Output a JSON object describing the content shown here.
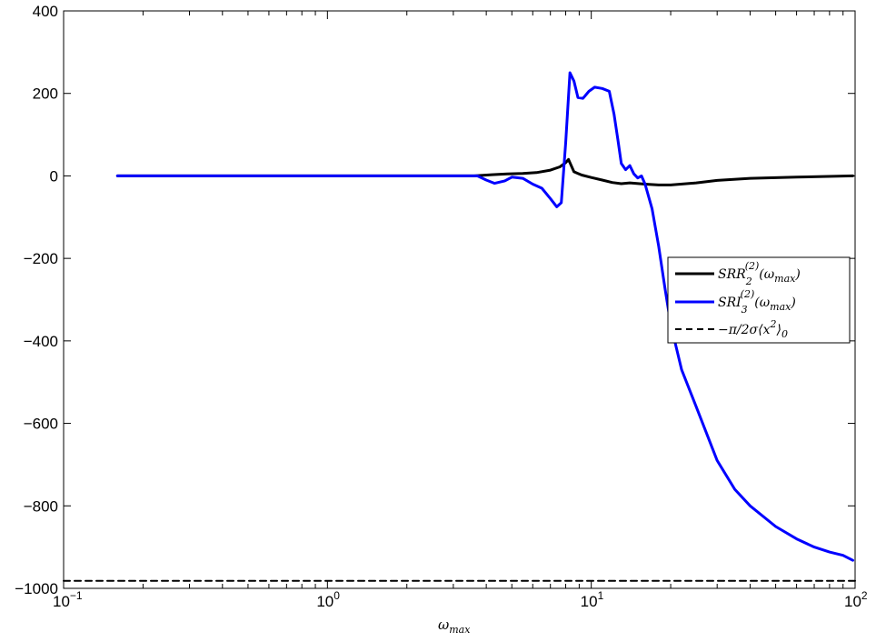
{
  "chart_data": {
    "type": "line",
    "xscale": "log",
    "xlim": [
      0.1,
      100
    ],
    "ylim": [
      -1000,
      400
    ],
    "xticks": [
      {
        "value": 0.1,
        "base": "10",
        "exp": "−1"
      },
      {
        "value": 1,
        "base": "10",
        "exp": "0"
      },
      {
        "value": 10,
        "base": "10",
        "exp": "1"
      },
      {
        "value": 100,
        "base": "10",
        "exp": "2"
      }
    ],
    "yticks": [
      {
        "value": 400,
        "label": "400"
      },
      {
        "value": 200,
        "label": "200"
      },
      {
        "value": 0,
        "label": "0"
      },
      {
        "value": -200,
        "label": "−200"
      },
      {
        "value": -400,
        "label": "−400"
      },
      {
        "value": -600,
        "label": "−600"
      },
      {
        "value": -800,
        "label": "−800"
      },
      {
        "value": -1000,
        "label": "−1000"
      }
    ],
    "xlabel": "ω_max",
    "legend_position": "right",
    "series": [
      {
        "name": "SRR_2^(2)(ω_max)",
        "legend": {
          "main": "SRR",
          "sub": "2",
          "sup": "(2)",
          "arg": "(ω",
          "argsub": "max",
          "close": ")"
        },
        "color": "#000000",
        "style": "solid",
        "x": [
          0.16,
          0.5,
          1,
          2,
          3.6,
          4.2,
          4.8,
          5.5,
          6.2,
          7.0,
          7.6,
          8.0,
          8.2,
          8.6,
          9.2,
          10,
          11,
          12,
          13,
          14,
          16,
          18,
          20,
          25,
          30,
          40,
          60,
          98
        ],
        "y": [
          0,
          0,
          0,
          0,
          0,
          3,
          5,
          6,
          8,
          14,
          22,
          32,
          40,
          10,
          2,
          -4,
          -10,
          -16,
          -19,
          -17,
          -20,
          -22,
          -22,
          -17,
          -11,
          -6,
          -3,
          0
        ]
      },
      {
        "name": "SRI_3^(2)(ω_max)",
        "legend": {
          "main": "SRI",
          "sub": "3",
          "sup": "(2)",
          "arg": "(ω",
          "argsub": "max",
          "close": ")"
        },
        "color": "#0000ff",
        "style": "solid",
        "x": [
          0.16,
          0.5,
          1,
          2,
          3.7,
          4.0,
          4.3,
          4.7,
          5.0,
          5.5,
          6.0,
          6.5,
          7.0,
          7.4,
          7.7,
          8.0,
          8.3,
          8.6,
          8.9,
          9.3,
          9.8,
          10.3,
          11.0,
          11.7,
          12.2,
          12.6,
          13.0,
          13.5,
          14.0,
          14.5,
          15.0,
          15.5,
          16.0,
          17,
          18,
          19,
          20,
          22,
          25,
          30,
          35,
          40,
          50,
          60,
          70,
          80,
          90,
          98
        ],
        "y": [
          0,
          0,
          0,
          0,
          0,
          -10,
          -18,
          -12,
          -3,
          -6,
          -20,
          -30,
          -55,
          -75,
          -65,
          80,
          250,
          230,
          190,
          188,
          205,
          215,
          212,
          205,
          150,
          90,
          30,
          15,
          25,
          5,
          -5,
          0,
          -20,
          -80,
          -170,
          -270,
          -360,
          -470,
          -560,
          -690,
          -760,
          -800,
          -850,
          -880,
          -900,
          -912,
          -920,
          -932
        ]
      },
      {
        "name": "−π/2σ⟨x²⟩_0",
        "legend": {
          "text": "−π/2σ⟨x",
          "sup2": "2",
          "close": "⟩",
          "sub0": "0"
        },
        "color": "#000000",
        "style": "dashed",
        "x": [
          0.1,
          100
        ],
        "y": [
          -982,
          -982
        ]
      }
    ]
  }
}
